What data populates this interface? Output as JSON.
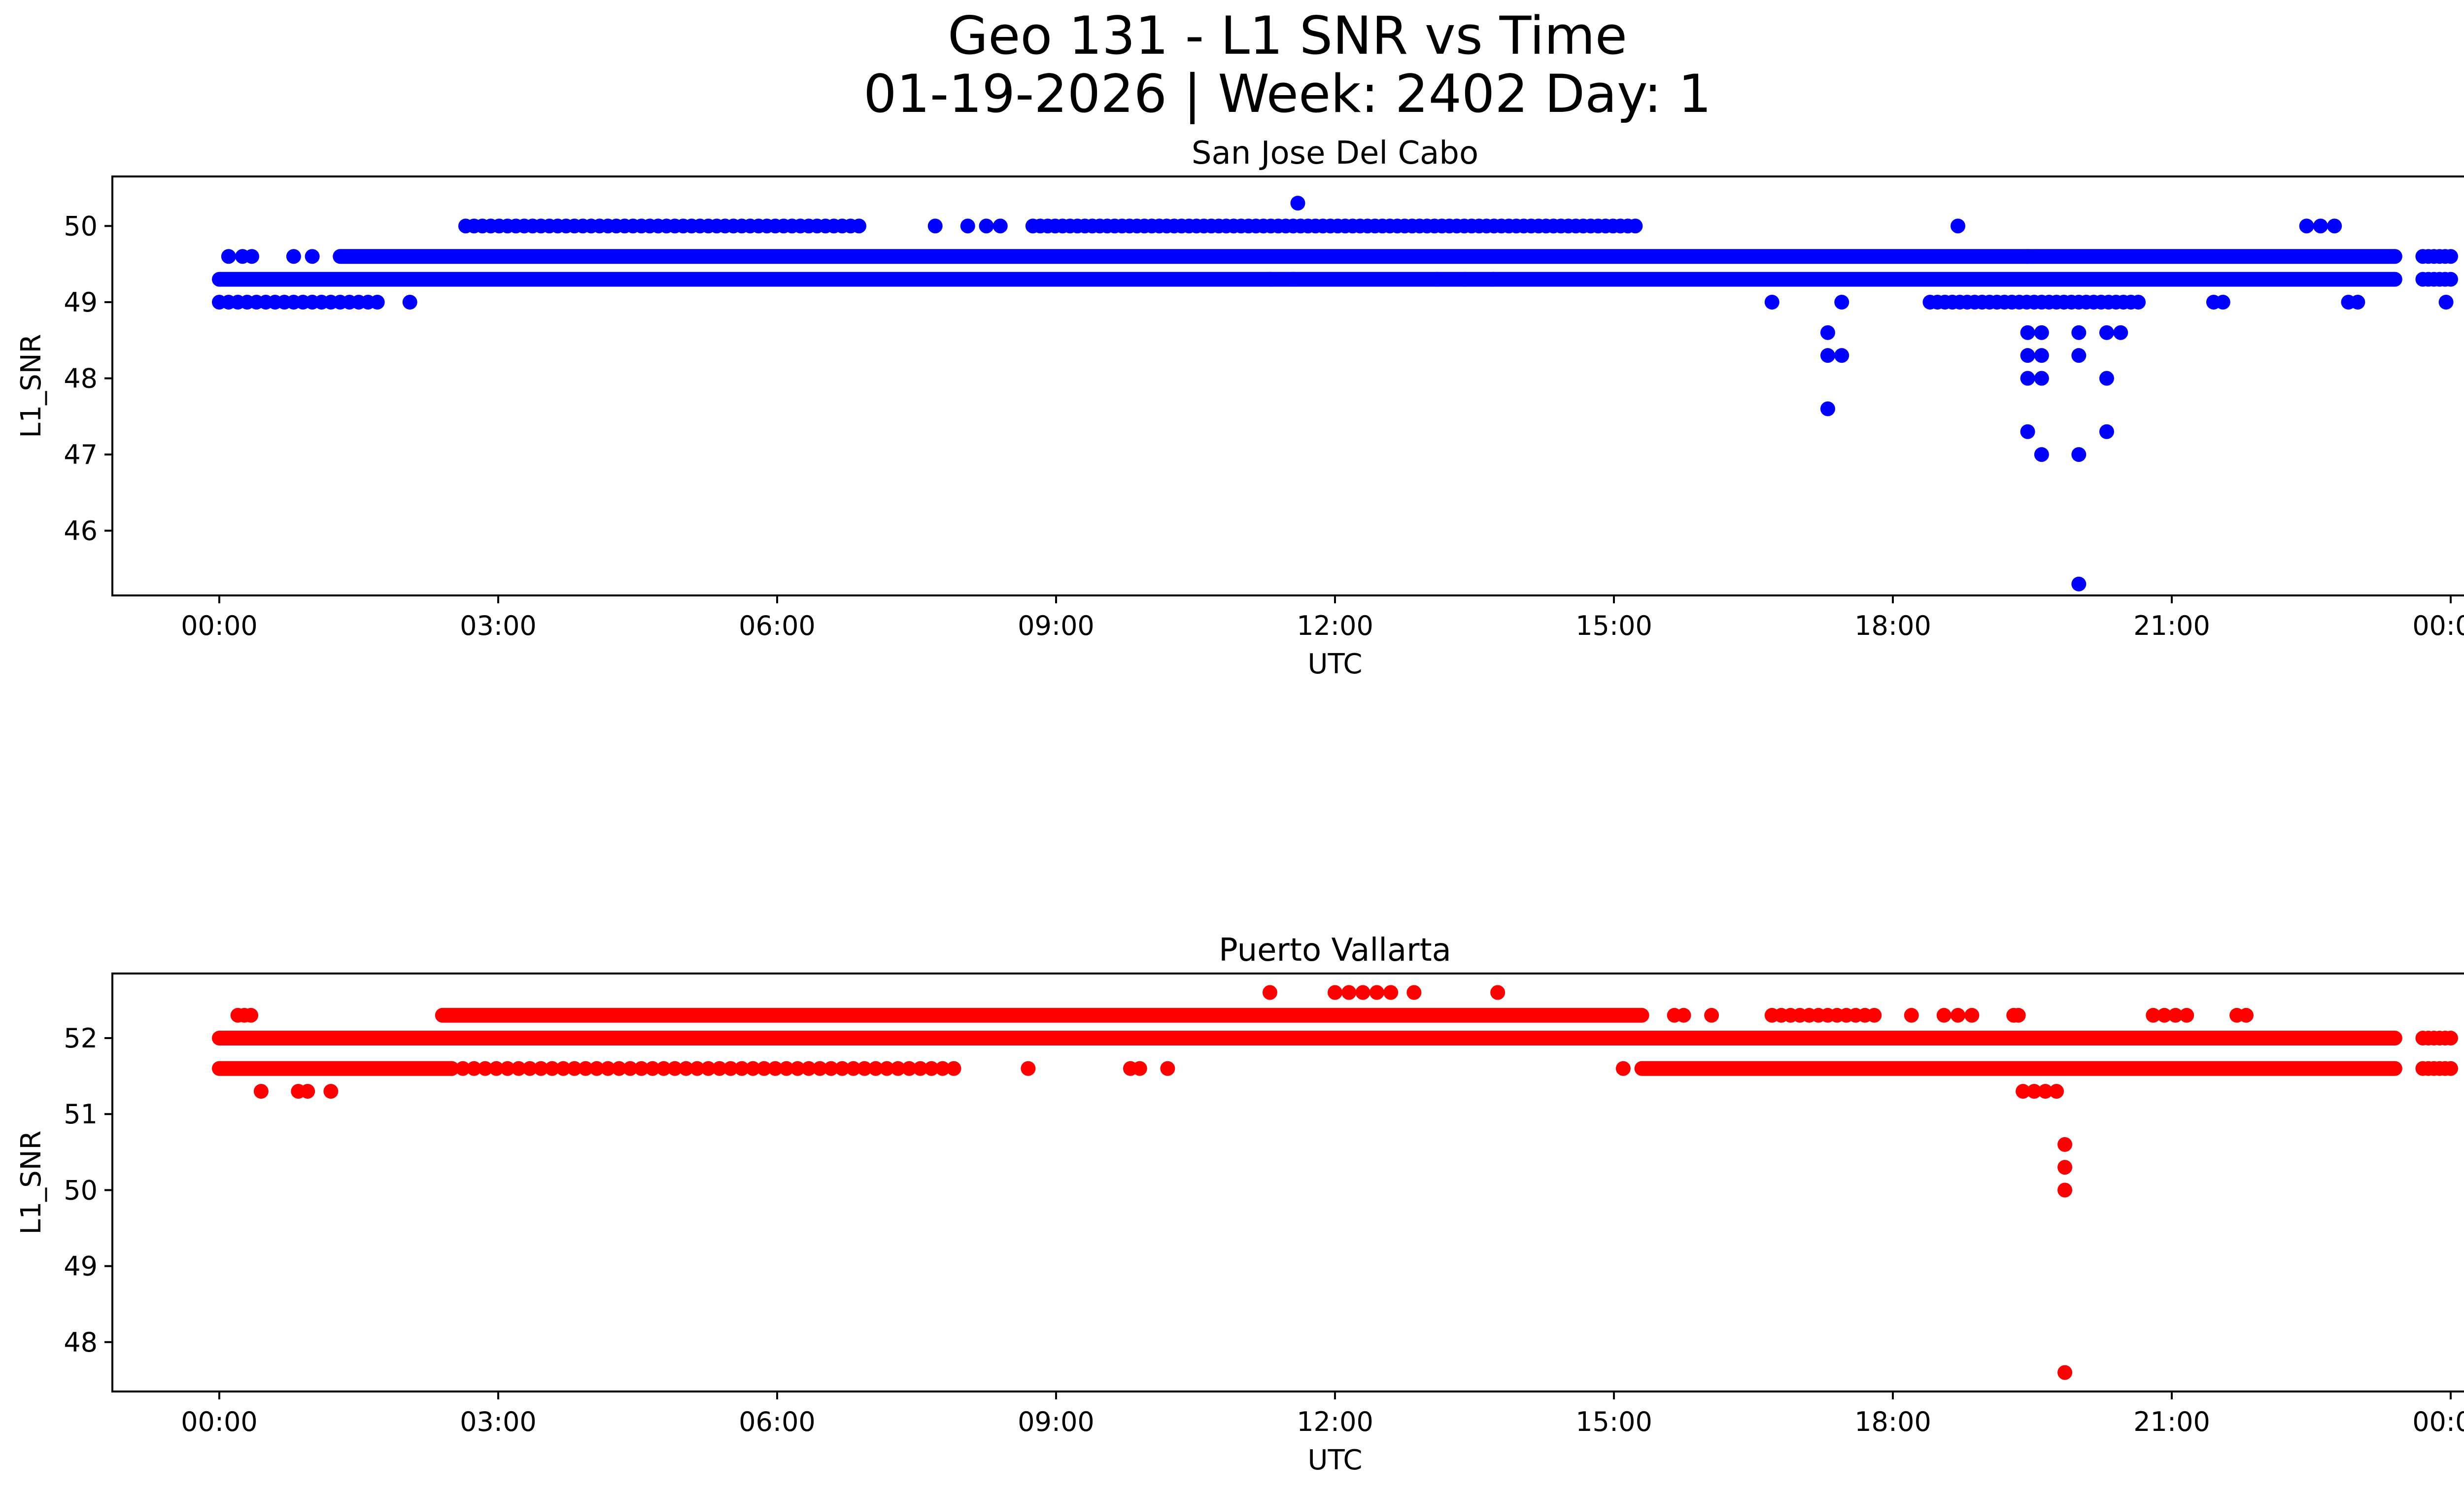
{
  "figure": {
    "title_line1": "Geo 131 - L1 SNR vs Time",
    "title_line2": "01-19-2026 | Week: 2402 Day: 1"
  },
  "chart_data": [
    {
      "type": "scatter",
      "title": "San Jose Del Cabo",
      "xlabel": "UTC",
      "ylabel": "L1_SNR",
      "color": "#0000ff",
      "xlim_hours": [
        -1.15,
        25.15
      ],
      "ylim": [
        45.15,
        50.65
      ],
      "x_ticks": [
        "00:00",
        "03:00",
        "06:00",
        "09:00",
        "12:00",
        "15:00",
        "18:00",
        "21:00",
        "00:00"
      ],
      "y_ticks": [
        46,
        47,
        48,
        49,
        50
      ],
      "bands": [
        {
          "y": 49.3,
          "from": 0.0,
          "to": 23.4
        },
        {
          "y": 49.6,
          "from": 1.3,
          "to": 23.4
        }
      ],
      "segments": [
        {
          "y": 49.0,
          "from": 0.0,
          "to": 1.7,
          "step": 0.1
        },
        {
          "y": 50.0,
          "from": 2.65,
          "to": 6.9,
          "step": 0.09
        },
        {
          "y": 50.0,
          "from": 8.75,
          "to": 15.25,
          "step": 0.08
        },
        {
          "y": 49.0,
          "from": 18.4,
          "to": 20.7,
          "step": 0.08
        },
        {
          "y": 49.6,
          "from": 23.7,
          "to": 24.0,
          "step": 0.06
        },
        {
          "y": 49.3,
          "from": 23.7,
          "to": 24.0,
          "step": 0.06
        }
      ],
      "points": [
        [
          0.1,
          49.6
        ],
        [
          0.25,
          49.6
        ],
        [
          0.35,
          49.6
        ],
        [
          0.8,
          49.6
        ],
        [
          1.0,
          49.6
        ],
        [
          2.05,
          49.0
        ],
        [
          7.7,
          50.0
        ],
        [
          8.05,
          50.0
        ],
        [
          8.25,
          50.0
        ],
        [
          8.4,
          50.0
        ],
        [
          11.6,
          50.3
        ],
        [
          18.7,
          50.0
        ],
        [
          22.45,
          50.0
        ],
        [
          22.6,
          50.0
        ],
        [
          22.75,
          50.0
        ],
        [
          11.3,
          49.3
        ],
        [
          11.55,
          49.3
        ],
        [
          13.1,
          49.3
        ],
        [
          13.4,
          49.3
        ],
        [
          13.7,
          49.3
        ],
        [
          16.7,
          49.0
        ],
        [
          17.3,
          48.6
        ],
        [
          17.3,
          48.3
        ],
        [
          17.3,
          47.6
        ],
        [
          17.45,
          48.3
        ],
        [
          17.45,
          49.0
        ],
        [
          19.45,
          49.6
        ],
        [
          19.45,
          48.6
        ],
        [
          19.45,
          48.3
        ],
        [
          19.45,
          48.0
        ],
        [
          19.45,
          47.3
        ],
        [
          19.6,
          48.6
        ],
        [
          19.6,
          48.3
        ],
        [
          19.6,
          48.0
        ],
        [
          19.6,
          47.0
        ],
        [
          20.0,
          48.6
        ],
        [
          20.0,
          48.3
        ],
        [
          20.0,
          47.0
        ],
        [
          20.0,
          45.3
        ],
        [
          20.3,
          48.6
        ],
        [
          20.3,
          48.0
        ],
        [
          20.3,
          47.3
        ],
        [
          20.45,
          48.6
        ],
        [
          21.45,
          49.0
        ],
        [
          21.55,
          49.0
        ],
        [
          22.9,
          49.0
        ],
        [
          23.0,
          49.0
        ],
        [
          23.95,
          49.0
        ]
      ]
    },
    {
      "type": "scatter",
      "title": "Puerto Vallarta",
      "xlabel": "UTC",
      "ylabel": "L1_SNR",
      "color": "#ff0000",
      "xlim_hours": [
        -1.15,
        25.15
      ],
      "ylim": [
        47.35,
        52.85
      ],
      "x_ticks": [
        "00:00",
        "03:00",
        "06:00",
        "09:00",
        "12:00",
        "15:00",
        "18:00",
        "21:00",
        "00:00"
      ],
      "y_ticks": [
        48,
        49,
        50,
        51,
        52
      ],
      "bands": [
        {
          "y": 52.0,
          "from": 0.0,
          "to": 23.4
        },
        {
          "y": 51.6,
          "from": 0.0,
          "to": 2.5
        },
        {
          "y": 51.6,
          "from": 15.3,
          "to": 23.4
        },
        {
          "y": 52.3,
          "from": 2.4,
          "to": 15.3
        }
      ],
      "segments": [
        {
          "y": 52.3,
          "from": 0.2,
          "to": 0.4,
          "step": 0.07
        },
        {
          "y": 51.6,
          "from": 2.5,
          "to": 7.9,
          "step": 0.12
        },
        {
          "y": 52.3,
          "from": 16.8,
          "to": 17.8,
          "step": 0.1
        },
        {
          "y": 51.3,
          "from": 19.4,
          "to": 19.8,
          "step": 0.12
        },
        {
          "y": 52.3,
          "from": 20.8,
          "to": 21.2,
          "step": 0.12
        },
        {
          "y": 52.0,
          "from": 23.7,
          "to": 24.0,
          "step": 0.06
        },
        {
          "y": 51.6,
          "from": 23.7,
          "to": 24.0,
          "step": 0.06
        }
      ],
      "points": [
        [
          0.45,
          51.3
        ],
        [
          0.85,
          51.3
        ],
        [
          0.95,
          51.3
        ],
        [
          1.2,
          51.3
        ],
        [
          11.3,
          52.6
        ],
        [
          12.0,
          52.6
        ],
        [
          12.15,
          52.6
        ],
        [
          12.3,
          52.6
        ],
        [
          12.45,
          52.6
        ],
        [
          12.6,
          52.6
        ],
        [
          12.85,
          52.6
        ],
        [
          13.75,
          52.6
        ],
        [
          8.7,
          51.6
        ],
        [
          9.8,
          51.6
        ],
        [
          9.9,
          51.6
        ],
        [
          10.2,
          51.6
        ],
        [
          15.1,
          51.6
        ],
        [
          15.65,
          52.3
        ],
        [
          15.75,
          52.3
        ],
        [
          16.05,
          52.3
        ],
        [
          16.7,
          52.3
        ],
        [
          18.2,
          52.3
        ],
        [
          18.55,
          52.3
        ],
        [
          18.7,
          52.3
        ],
        [
          18.85,
          52.3
        ],
        [
          19.3,
          52.3
        ],
        [
          19.35,
          52.3
        ],
        [
          21.7,
          52.3
        ],
        [
          21.8,
          52.3
        ],
        [
          19.85,
          50.6
        ],
        [
          19.85,
          50.3
        ],
        [
          19.85,
          50.0
        ],
        [
          19.85,
          47.6
        ]
      ]
    }
  ]
}
